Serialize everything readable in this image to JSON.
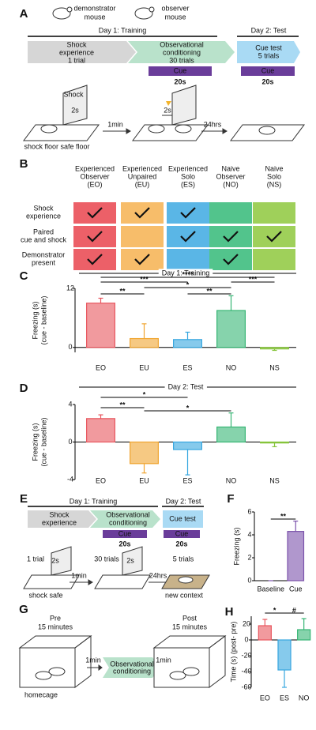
{
  "panel_labels": {
    "a": "A",
    "b": "B",
    "c": "C",
    "d": "D",
    "e": "E",
    "f": "F",
    "g": "G",
    "h": "H"
  },
  "panel_a": {
    "demonstrator": [
      "demonstrator",
      "mouse"
    ],
    "observer": [
      "observer",
      "mouse"
    ],
    "day1": "Day 1: Training",
    "day2": "Day 2: Test",
    "stage1": [
      "Shock",
      "experience",
      "1 trial"
    ],
    "stage2": [
      "Observational",
      "conditioning",
      "30 trials"
    ],
    "stage3": [
      "Cue test",
      "5 trials"
    ],
    "cue1": "Cue",
    "cue1_duration": "20s",
    "cue2": "Cue",
    "cue2_duration": "20s",
    "shock": "Shock",
    "shock1_duration": "2s",
    "shock2_duration": "2s",
    "floors": "shock floor safe floor",
    "interval1": "1min",
    "interval2": "24hrs"
  },
  "panel_b": {
    "columns": [
      [
        "Experienced",
        "Observer",
        "(EO)"
      ],
      [
        "Experienced",
        "Unpaired",
        "(EU)"
      ],
      [
        "Experienced",
        "Solo",
        "(ES)"
      ],
      [
        "Naive",
        "Observer",
        "(NO)"
      ],
      [
        "Naive",
        "Solo",
        "(NS)"
      ]
    ],
    "column_colors": [
      "#ec6068",
      "#f7bd6a",
      "#5ab6e6",
      "#52c48c",
      "#9fd05a"
    ],
    "rows": [
      [
        "Shock",
        "experience"
      ],
      [
        "Paired",
        "cue and shock"
      ],
      [
        "Demonstrator",
        "present"
      ]
    ],
    "checks": [
      [
        true,
        true,
        true,
        false,
        false
      ],
      [
        true,
        false,
        true,
        true,
        true
      ],
      [
        true,
        true,
        false,
        true,
        false
      ]
    ]
  },
  "chart_data": [
    {
      "type": "bar",
      "title": "Day 1: Training",
      "ylabel": [
        "Freezing (s)",
        "(cue - baseline)"
      ],
      "categories": [
        "EO",
        "EU",
        "ES",
        "NO",
        "NS"
      ],
      "values": [
        9,
        1.8,
        1.6,
        7.5,
        -0.3
      ],
      "errors": [
        1,
        3,
        1.5,
        3,
        0.3
      ],
      "colors": [
        "#e8565e",
        "#f0a530",
        "#36a6e0",
        "#36b574",
        "#86c43a"
      ],
      "colored_labels": true,
      "ylim": [
        -1,
        12
      ],
      "yticks": [
        0,
        12
      ],
      "brackets": [
        {
          "from": "EO",
          "to": "NS",
          "label": "****"
        },
        {
          "from": "EO",
          "to": "ES",
          "label": "***"
        },
        {
          "from": "NO",
          "to": "NS",
          "label": "***"
        },
        {
          "from": "EU",
          "to": "NO",
          "label": "*"
        },
        {
          "from": "EO",
          "to": "EU",
          "label": "**"
        },
        {
          "from": "ES",
          "to": "NO",
          "label": "**"
        }
      ]
    },
    {
      "type": "bar",
      "title": "Day 2: Test",
      "ylabel": [
        "Freezing (s)",
        "(cue - baseline)"
      ],
      "categories": [
        "EO",
        "EU",
        "ES",
        "NO",
        "NS"
      ],
      "values": [
        2.5,
        -2.3,
        -0.8,
        1.6,
        -0.1
      ],
      "errors": [
        0.4,
        1,
        2.7,
        1.5,
        0.4
      ],
      "colors": [
        "#e8565e",
        "#f0a530",
        "#36a6e0",
        "#36b574",
        "#86c43a"
      ],
      "colored_labels": true,
      "ylim": [
        -4,
        4
      ],
      "yticks": [
        -4,
        0,
        4
      ],
      "brackets": [
        {
          "from": "EO",
          "to": "ES",
          "label": "*"
        },
        {
          "from": "EO",
          "to": "EU",
          "label": "**"
        },
        {
          "from": "EU",
          "to": "NO",
          "label": "*"
        }
      ]
    },
    {
      "type": "bar",
      "ylabel": [
        "Freezing (s)"
      ],
      "categories": [
        "Baseline",
        "Cue"
      ],
      "values": [
        0,
        4.3
      ],
      "errors": [
        0,
        0.9
      ],
      "colors": [
        "#7b52ab",
        "#7b52ab"
      ],
      "colored_labels": false,
      "ylim": [
        0,
        6
      ],
      "yticks": [
        0,
        2,
        4,
        6
      ],
      "brackets": [
        {
          "from": "Baseline",
          "to": "Cue",
          "label": "**"
        }
      ]
    },
    {
      "type": "bar",
      "ylabel": [
        "Time (s) (post- pre)"
      ],
      "categories": [
        "EO",
        "ES",
        "NO"
      ],
      "values": [
        18,
        -38,
        13
      ],
      "errors": [
        8,
        22,
        14
      ],
      "colors": [
        "#e8565e",
        "#36a6e0",
        "#36b574"
      ],
      "colored_labels": true,
      "ylim": [
        -60,
        30
      ],
      "yticks": [
        -60,
        -40,
        -20,
        0,
        20
      ],
      "brackets": [
        {
          "from": "EO",
          "to": "ES",
          "label": "*"
        },
        {
          "from": "ES",
          "to": "NO",
          "label": "#"
        }
      ]
    }
  ],
  "panel_e": {
    "day1": "Day 1: Training",
    "day2": "Day 2: Test",
    "stage1": [
      "Shock",
      "experience"
    ],
    "stage2": [
      "Observational",
      "conditioning"
    ],
    "stage3": "Cue test",
    "cue1": "Cue",
    "cue1_duration": "20s",
    "cue2": "Cue",
    "cue2_duration": "20s",
    "trials1": "1 trial",
    "shock1_duration": "2s",
    "trials2": "30 trials",
    "shock2_duration": "2s",
    "trials3": "5 trials",
    "interval1": "1min",
    "interval2": "24hrs",
    "floors": "shock safe",
    "context": "new context"
  },
  "panel_g": {
    "pre": [
      "Pre",
      "15 minutes"
    ],
    "post": [
      "Post",
      "15 minutes"
    ],
    "homecage": "homecage",
    "interval1": "1min",
    "stage": [
      "Observational",
      "conditioning"
    ],
    "interval2": "1min"
  }
}
